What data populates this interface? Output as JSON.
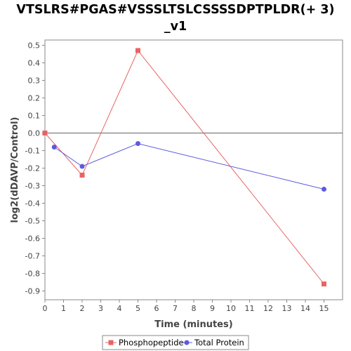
{
  "chart_data": {
    "type": "line",
    "title": "VTSLRS#PGAS#VSSSLTSLCSSSSDPTPLDR(+ 3)_v1",
    "title_lines": [
      "VTSLRS#PGAS#VSSSLTSLCSSSSDPTPLDR(+ 3)",
      "_v1"
    ],
    "xlabel": "Time (minutes)",
    "ylabel": "log2(dDAVP/Control)",
    "xlim": [
      0,
      16
    ],
    "ylim": [
      -0.95,
      0.53
    ],
    "x_ticks": [
      0,
      1,
      2,
      3,
      4,
      5,
      6,
      7,
      8,
      9,
      10,
      11,
      12,
      13,
      14,
      15
    ],
    "y_ticks": [
      -0.9,
      -0.8,
      -0.7,
      -0.6,
      -0.5,
      -0.4,
      -0.3,
      -0.2,
      -0.1,
      0.0,
      0.1,
      0.2,
      0.3,
      0.4,
      0.5
    ],
    "grid": false,
    "zero_line": true,
    "legend_position": "bottom",
    "series": [
      {
        "name": "Phosphopeptide",
        "color": "#e86464",
        "marker": "square",
        "x": [
          0,
          2,
          5,
          15
        ],
        "y": [
          0.0,
          -0.24,
          0.47,
          -0.86
        ]
      },
      {
        "name": "Total Protein",
        "color": "#5b5be0",
        "marker": "circle",
        "x": [
          0.5,
          2,
          5,
          15
        ],
        "y": [
          -0.08,
          -0.19,
          -0.06,
          -0.32
        ]
      }
    ]
  }
}
